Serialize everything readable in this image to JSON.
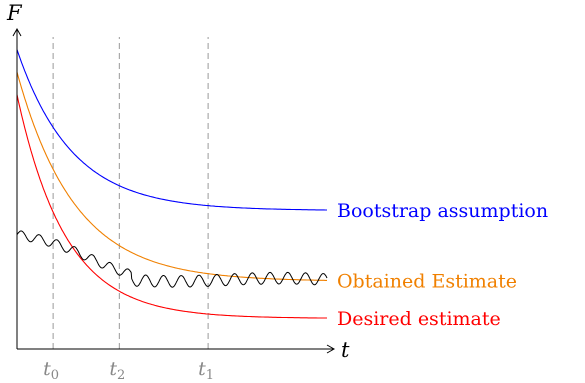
{
  "chart_data": {
    "type": "line",
    "ylabel": "F",
    "xlabel": "t",
    "x_ticks": [
      {
        "label_main": "t",
        "label_sub": "0",
        "x": 1.2
      },
      {
        "label_main": "t",
        "label_sub": "2",
        "x": 3.4
      },
      {
        "label_main": "t",
        "label_sub": "1",
        "x": 6.35
      }
    ],
    "xlim": [
      0,
      10.4
    ],
    "ylim": [
      0,
      10
    ],
    "grid": false,
    "series": [
      {
        "name": "Bootstrap assumption",
        "color": "#0000ff",
        "kind": "exp",
        "start": 9.3,
        "asymptote": 4.3,
        "decay": 0.55,
        "x_end": 10.3
      },
      {
        "name": "Obtained Estimate",
        "color": "#f08000",
        "kind": "exp",
        "start": 8.6,
        "asymptote": 2.1,
        "decay": 0.52,
        "x_end": 10.3
      },
      {
        "name": "Desired estimate",
        "color": "#ff0000",
        "kind": "exp",
        "start": 7.9,
        "asymptote": 0.95,
        "decay": 0.62,
        "x_end": 10.3
      },
      {
        "name": "",
        "color": "#000000",
        "kind": "noisy",
        "x_start": 0,
        "x_end": 10.3,
        "oscillation_amplitude": 0.18
      }
    ]
  }
}
